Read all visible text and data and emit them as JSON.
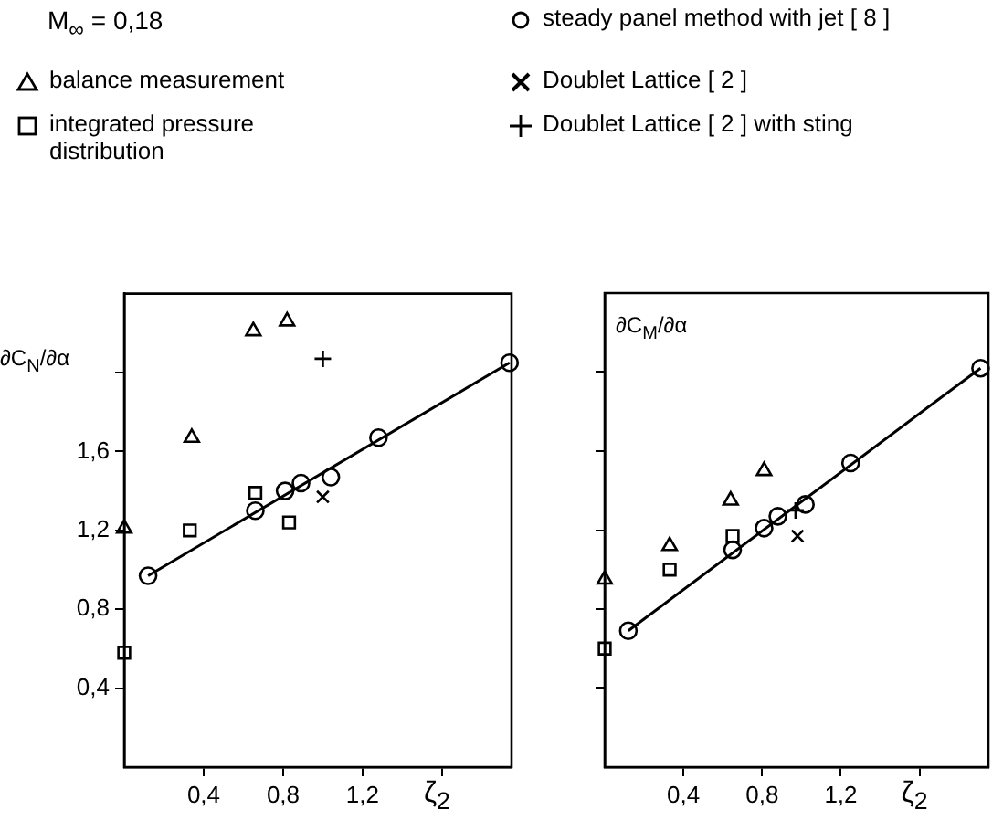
{
  "chart_data": [
    {
      "type": "scatter",
      "title": "M$_{∞}$ = 0,18",
      "ylabel": "∂C$_{N}$/∂α",
      "xlabel": "ζ$_{2}$",
      "legend": "top",
      "grid": false,
      "xlim": [
        0,
        1.95
      ],
      "ylim": [
        0,
        2.4
      ],
      "xticks": [
        {
          "value": 0.4,
          "label": "0,4"
        },
        {
          "value": 0.8,
          "label": "0,8"
        },
        {
          "value": 1.2,
          "label": "1,2"
        },
        {
          "value": 1.6,
          "label": null
        }
      ],
      "yticks": [
        {
          "value": 0.4,
          "label": "0,4"
        },
        {
          "value": 0.8,
          "label": "0,8"
        },
        {
          "value": 1.2,
          "label": "1,2"
        },
        {
          "value": 1.6,
          "label": "1,6"
        },
        {
          "value": 2.0,
          "label": null
        }
      ],
      "series": [
        {
          "name": "balance measurement",
          "color": "#000000",
          "marker": "triangle",
          "x": [
            0,
            0.34,
            0.65,
            0.82
          ],
          "values": [
            1.21,
            1.67,
            2.21,
            2.26
          ]
        },
        {
          "name": "integrated pressure distribution",
          "color": "#000000",
          "marker": "square",
          "x": [
            0,
            0.33,
            0.66,
            0.83
          ],
          "values": [
            0.58,
            1.2,
            1.39,
            1.24
          ]
        },
        {
          "name": "steady panel method with jet [ 8 ]",
          "color": "#000000",
          "marker": "circle",
          "x": [
            0.12,
            0.66,
            0.81,
            0.89,
            1.04,
            1.28,
            1.94
          ],
          "values": [
            0.97,
            1.3,
            1.4,
            1.44,
            1.47,
            1.67,
            2.05
          ]
        },
        {
          "name": "Doublet Lattice [ 2 ]",
          "color": "#000000",
          "marker": "cross",
          "x": [
            1.0
          ],
          "values": [
            1.37
          ]
        },
        {
          "name": "Doublet Lattice [ 2 ] with sting",
          "color": "#000000",
          "marker": "plus",
          "x": [
            1.0
          ],
          "values": [
            2.07
          ]
        },
        {
          "type": "line",
          "color": "#000000",
          "marker": "none",
          "x": [
            0.12,
            1.94
          ],
          "values": [
            0.97,
            2.05
          ]
        }
      ]
    },
    {
      "type": "scatter",
      "ylabel": "∂C$_{M}$/∂α",
      "xlabel": "ζ$_{2}$",
      "grid": false,
      "tick_labels": "x",
      "xlim": [
        0,
        1.95
      ],
      "ylim": [
        0,
        2.4
      ],
      "xticks": [
        {
          "value": 0.4,
          "label": "0,4"
        },
        {
          "value": 0.8,
          "label": "0,8"
        },
        {
          "value": 1.2,
          "label": "1,2"
        },
        {
          "value": 1.6,
          "label": null
        }
      ],
      "yticks": [
        {
          "value": 0.4,
          "label": null
        },
        {
          "value": 0.8,
          "label": null
        },
        {
          "value": 1.2,
          "label": null
        },
        {
          "value": 1.6,
          "label": null
        },
        {
          "value": 2.0,
          "label": null
        }
      ],
      "series": [
        {
          "color": "#000000",
          "marker": "triangle",
          "x": [
            0,
            0.33,
            0.64,
            0.81
          ],
          "values": [
            0.95,
            1.12,
            1.35,
            1.5
          ]
        },
        {
          "color": "#000000",
          "marker": "square",
          "x": [
            0,
            0.33,
            0.65
          ],
          "values": [
            0.6,
            1.0,
            1.17
          ]
        },
        {
          "color": "#000000",
          "marker": "circle",
          "x": [
            0.12,
            0.65,
            0.81,
            0.88,
            1.02,
            1.25,
            1.91
          ],
          "values": [
            0.69,
            1.1,
            1.21,
            1.27,
            1.33,
            1.54,
            2.02
          ]
        },
        {
          "color": "#000000",
          "marker": "cross",
          "x": [
            0.98
          ],
          "values": [
            1.17
          ]
        },
        {
          "color": "#000000",
          "marker": "plus",
          "x": [
            0.97
          ],
          "values": [
            1.3
          ]
        },
        {
          "type": "line",
          "color": "#000000",
          "marker": "none",
          "x": [
            0.12,
            1.91
          ],
          "values": [
            0.69,
            2.02
          ]
        }
      ]
    }
  ]
}
